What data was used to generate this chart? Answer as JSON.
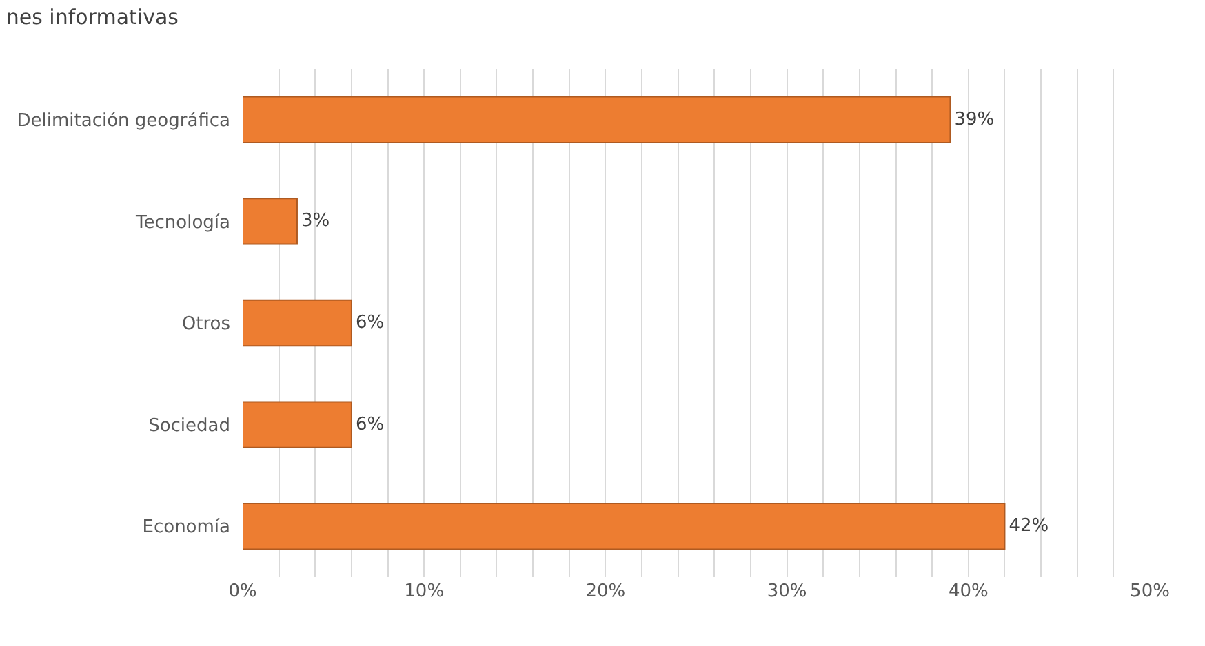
{
  "chart_data": {
    "type": "bar",
    "orientation": "horizontal",
    "title": "nes informativas",
    "categories": [
      "Delimitación geográfica",
      "Tecnología",
      "Otros",
      "Sociedad",
      "Economía"
    ],
    "values": [
      39,
      3,
      6,
      6,
      42
    ],
    "value_labels": [
      "39%",
      "3%",
      "6%",
      "6%",
      "42%"
    ],
    "color": "#ed7d31",
    "xlim": [
      0,
      50
    ],
    "xticks": [
      {
        "value": 0,
        "label": "0%"
      },
      {
        "value": 2,
        "label": null
      },
      {
        "value": 4,
        "label": null
      },
      {
        "value": 6,
        "label": null
      },
      {
        "value": 8,
        "label": null
      },
      {
        "value": 10,
        "label": "10%"
      },
      {
        "value": 12,
        "label": null
      },
      {
        "value": 14,
        "label": null
      },
      {
        "value": 16,
        "label": null
      },
      {
        "value": 18,
        "label": null
      },
      {
        "value": 20,
        "label": "20%"
      },
      {
        "value": 22,
        "label": null
      },
      {
        "value": 24,
        "label": null
      },
      {
        "value": 26,
        "label": null
      },
      {
        "value": 28,
        "label": null
      },
      {
        "value": 30,
        "label": "30%"
      },
      {
        "value": 32,
        "label": null
      },
      {
        "value": 34,
        "label": null
      },
      {
        "value": 36,
        "label": null
      },
      {
        "value": 38,
        "label": null
      },
      {
        "value": 40,
        "label": "40%"
      },
      {
        "value": 42,
        "label": null
      },
      {
        "value": 44,
        "label": null
      },
      {
        "value": 46,
        "label": null
      },
      {
        "value": 48,
        "label": null
      },
      {
        "value": 50,
        "label": "50%"
      }
    ],
    "grid": "x",
    "legend": false
  }
}
